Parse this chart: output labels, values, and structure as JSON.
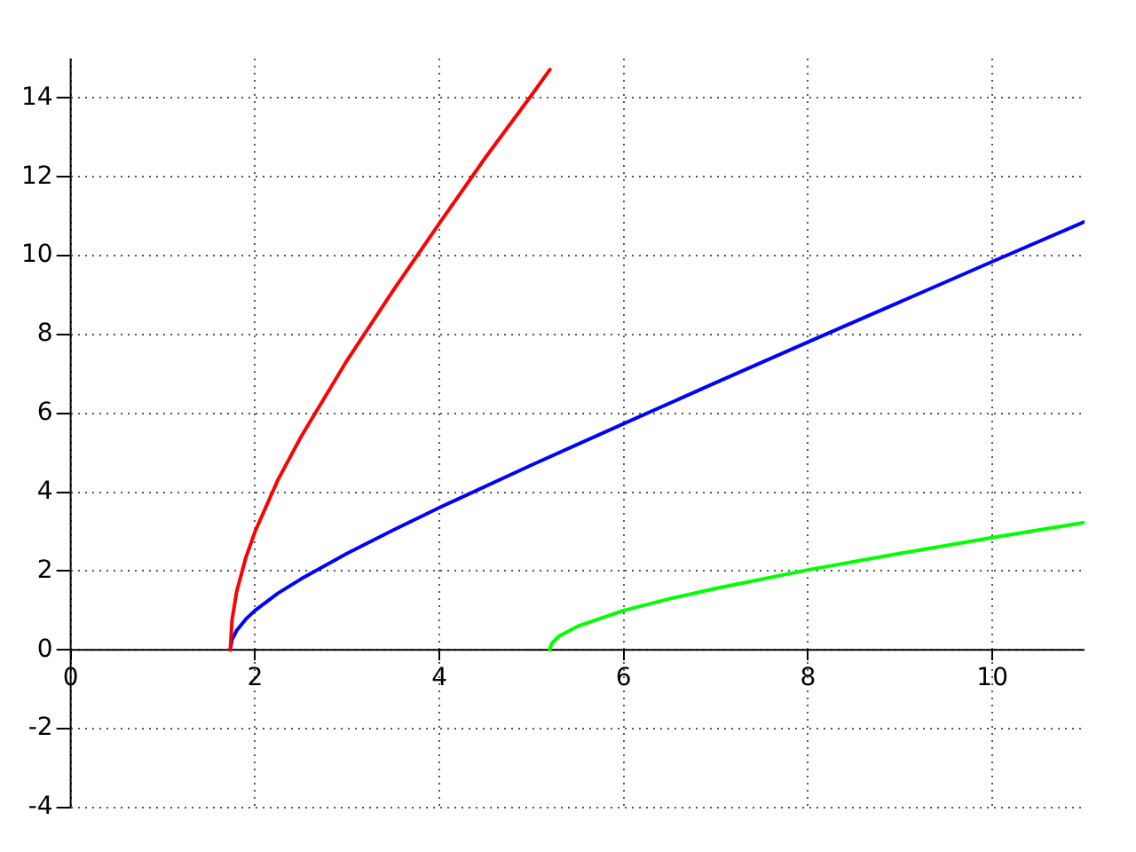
{
  "chart_data": {
    "type": "line",
    "xlim": [
      0,
      11
    ],
    "ylim": [
      -4,
      15
    ],
    "xticks": [
      0,
      2,
      4,
      6,
      8,
      10
    ],
    "yticks": [
      -4,
      -2,
      0,
      2,
      4,
      6,
      8,
      10,
      12,
      14
    ],
    "grid": true,
    "legend": false,
    "marker": "none",
    "line_style": "solid",
    "series": [
      {
        "color": "#ff0000",
        "x": [
          1.732,
          1.75,
          1.8,
          1.9,
          2,
          2.25,
          2.5,
          3,
          3.5,
          4,
          4.5,
          5,
          5.2
        ],
        "values": [
          0,
          0.75,
          1.47,
          2.34,
          3.0,
          4.32,
          5.41,
          7.35,
          9.12,
          10.82,
          12.49,
          14.07,
          14.72
        ]
      },
      {
        "color": "#0000ff",
        "x": [
          1.732,
          1.75,
          1.8,
          1.9,
          2,
          2.25,
          2.5,
          3,
          3.5,
          4,
          5,
          6,
          7,
          8,
          9,
          10,
          11
        ],
        "values": [
          0,
          0.25,
          0.49,
          0.78,
          1.0,
          1.44,
          1.8,
          2.45,
          3.04,
          3.61,
          4.69,
          5.74,
          6.78,
          7.81,
          8.83,
          9.85,
          10.86
        ]
      },
      {
        "color": "#00ff00",
        "x": [
          5.196,
          5.22,
          5.3,
          5.5,
          6,
          6.5,
          7,
          8,
          9,
          10,
          11
        ],
        "values": [
          0,
          0.17,
          0.35,
          0.6,
          1.0,
          1.3,
          1.56,
          2.03,
          2.45,
          2.85,
          3.23
        ]
      }
    ]
  }
}
